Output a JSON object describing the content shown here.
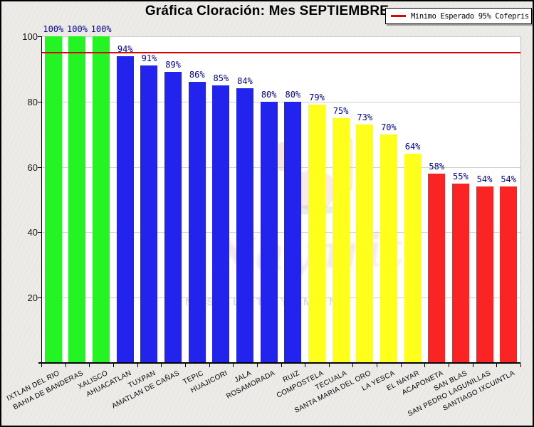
{
  "title": "Gráfica Cloración: Mes SEPTIEMBRE",
  "legend": {
    "label": "Minimo Esperado 95% Cofepris",
    "line_color": "#dd0000"
  },
  "watermark": {
    "script_text": "Nayarit",
    "caps_fragments": [
      {
        "x": 258,
        "text": "N"
      },
      {
        "x": 288,
        "text": "ST"
      },
      {
        "x": 325,
        "text": "L"
      },
      {
        "x": 358,
        "text": "T."
      },
      {
        "x": 392,
        "text": "Y"
      },
      {
        "x": 424,
        "text": "MI"
      },
      {
        "x": 460,
        "text": "N"
      }
    ]
  },
  "chart_data": {
    "type": "bar",
    "title": "Gráfica Cloración: Mes SEPTIEMBRE",
    "categories": [
      "IXTLAN DEL RIO",
      "BAHIA DE BANDERAS",
      "XALISCO",
      "AHUACATLAN",
      "TUXPAN",
      "AMATLAN DE CAÑAS",
      "TEPIC",
      "HUAJICORI",
      "JALA",
      "ROSAMORADA",
      "RUIZ",
      "COMPOSTELA",
      "TECUALA",
      "SANTA MARIA DEL ORO",
      "LA YESCA",
      "EL NAYAR",
      "ACAPONETA",
      "SAN BLAS",
      "SAN PEDRO LAGUNILLAS",
      "SANTIAGO IXCUINTLA"
    ],
    "values": [
      100,
      100,
      100,
      94,
      91,
      89,
      86,
      85,
      84,
      80,
      80,
      79,
      75,
      73,
      70,
      64,
      58,
      55,
      54,
      54
    ],
    "value_labels": [
      "100%",
      "100%",
      "100%",
      "94%",
      "91%",
      "89%",
      "86%",
      "85%",
      "84%",
      "80%",
      "80%",
      "79%",
      "75%",
      "73%",
      "70%",
      "64%",
      "58%",
      "55%",
      "54%",
      "54%"
    ],
    "bar_colors": [
      "#24f424",
      "#24f424",
      "#24f424",
      "#2323ee",
      "#2323ee",
      "#2323ee",
      "#2323ee",
      "#2323ee",
      "#2323ee",
      "#2323ee",
      "#2323ee",
      "#ffff1c",
      "#ffff1c",
      "#ffff1c",
      "#ffff1c",
      "#ffff1c",
      "#fa2424",
      "#fa2424",
      "#fa2424",
      "#fa2424"
    ],
    "xlabel": "",
    "ylabel": "",
    "ylim": [
      0,
      100
    ],
    "yticks": [
      20,
      40,
      60,
      80,
      100
    ],
    "grid": true,
    "legend_position": "top-right",
    "threshold_line": {
      "value": 95,
      "color": "#dd0000",
      "label": "Minimo Esperado 95% Cofepris"
    },
    "value_label_color": "#000099",
    "panel_bg": "#ffffff",
    "figure_bg": "#ecebe8"
  }
}
